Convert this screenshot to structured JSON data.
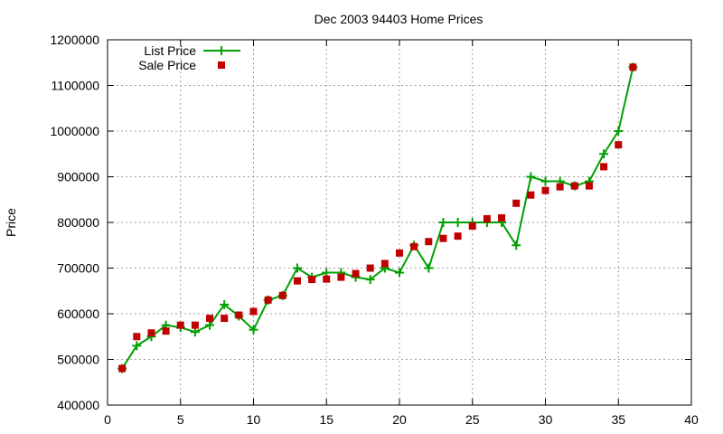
{
  "chart_data": {
    "type": "line",
    "title": "Dec 2003 94403 Home Prices",
    "xlabel": "",
    "ylabel": "Price",
    "xlim": [
      0,
      40
    ],
    "ylim": [
      400000,
      1200000
    ],
    "xticks": [
      0,
      5,
      10,
      15,
      20,
      25,
      30,
      35,
      40
    ],
    "yticks": [
      400000,
      500000,
      600000,
      700000,
      800000,
      900000,
      1000000,
      1100000,
      1200000
    ],
    "grid": true,
    "legend_position": "top-left",
    "series": [
      {
        "name": "List Price",
        "style": "lines+points",
        "marker": "plus",
        "color": "#00a000",
        "x": [
          1,
          2,
          3,
          4,
          5,
          6,
          7,
          8,
          9,
          10,
          11,
          12,
          13,
          14,
          15,
          16,
          17,
          18,
          19,
          20,
          21,
          22,
          23,
          24,
          25,
          26,
          27,
          28,
          29,
          30,
          31,
          32,
          33,
          34,
          35,
          36
        ],
        "y": [
          480000,
          530000,
          550000,
          575000,
          570000,
          560000,
          575000,
          620000,
          595000,
          565000,
          630000,
          640000,
          700000,
          680000,
          690000,
          690000,
          680000,
          675000,
          700000,
          690000,
          750000,
          700000,
          800000,
          800000,
          800000,
          800000,
          800000,
          750000,
          900000,
          890000,
          890000,
          880000,
          890000,
          950000,
          1000000,
          1140000
        ]
      },
      {
        "name": "Sale Price",
        "style": "points",
        "marker": "square",
        "color": "#c00000",
        "x": [
          1,
          2,
          3,
          4,
          5,
          6,
          7,
          8,
          9,
          10,
          11,
          12,
          13,
          14,
          15,
          16,
          17,
          18,
          19,
          20,
          21,
          22,
          23,
          24,
          25,
          26,
          27,
          28,
          29,
          30,
          31,
          32,
          33,
          34,
          35,
          36
        ],
        "y": [
          480000,
          550000,
          558000,
          562000,
          575000,
          575000,
          590000,
          590000,
          597000,
          605000,
          630000,
          640000,
          672000,
          675000,
          676000,
          680000,
          688000,
          700000,
          710000,
          733000,
          747000,
          758000,
          765000,
          770000,
          792000,
          808000,
          810000,
          842000,
          860000,
          870000,
          878000,
          880000,
          880000,
          922000,
          970000,
          1140000
        ]
      }
    ]
  }
}
